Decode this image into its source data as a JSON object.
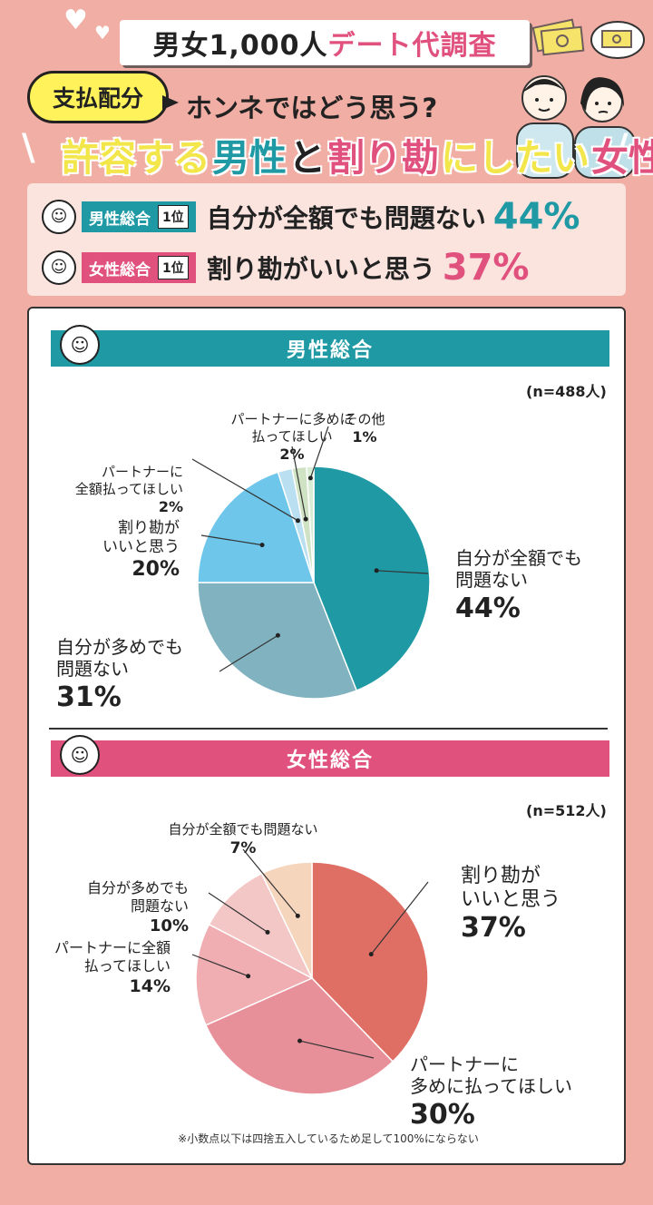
{
  "header": {
    "title_main": "男女1,000人",
    "title_accent": "デート代調査",
    "badge": "支払配分",
    "question": "ホンネではどう思う?",
    "headline": [
      {
        "text": "許容する",
        "color": "#f3e64b"
      },
      {
        "text": "男性",
        "color": "#1f9aa5"
      },
      {
        "text": "と",
        "color": "#222222"
      },
      {
        "text": "割り勘",
        "color": "#e0517e"
      },
      {
        "text": "にしたい",
        "color": "#f3e64b"
      },
      {
        "text": "女性",
        "color": "#e0517e"
      }
    ]
  },
  "summary": {
    "male": {
      "tag": "男性総合",
      "rank": "1位",
      "answer": "自分が全額でも問題ない",
      "pct": "44%",
      "color": "#1f9aa5"
    },
    "female": {
      "tag": "女性総合",
      "rank": "1位",
      "answer": "割り勘がいいと思う",
      "pct": "37%",
      "color": "#e0517e"
    }
  },
  "colors": {
    "male_band": "#1f9aa5",
    "female_band": "#e0517e",
    "background": "#f1aea4"
  },
  "chart_data": [
    {
      "type": "pie",
      "title": "男性総合",
      "n": "(n=488人)",
      "slices": [
        {
          "label": "自分が全額でも問題ない",
          "value": 44,
          "color": "#1f9aa5"
        },
        {
          "label": "自分が多めでも問題ない",
          "value": 31,
          "color": "#80b2bf"
        },
        {
          "label": "割り勘がいいと思う",
          "value": 20,
          "color": "#6ec6ea"
        },
        {
          "label": "パートナーに全額払ってほしい",
          "value": 2,
          "color": "#b9dff0"
        },
        {
          "label": "パートナーに多めに払ってほしい",
          "value": 2,
          "color": "#cfe3c4"
        },
        {
          "label": "その他",
          "value": 1,
          "color": "#d9ecd6"
        }
      ]
    },
    {
      "type": "pie",
      "title": "女性総合",
      "n": "(n=512人)",
      "slices": [
        {
          "label": "割り勘がいいと思う",
          "value": 37,
          "color": "#df6f65"
        },
        {
          "label": "パートナーに多めに払ってほしい",
          "value": 30,
          "color": "#e8909a"
        },
        {
          "label": "パートナーに全額払ってほしい",
          "value": 14,
          "color": "#f0aeb2"
        },
        {
          "label": "自分が多めでも問題ない",
          "value": 10,
          "color": "#f4c7c7"
        },
        {
          "label": "自分が全額でも問題ない",
          "value": 7,
          "color": "#f6d5bd"
        }
      ]
    }
  ],
  "chart_labels": {
    "male": [
      {
        "lines": [
          "自分が全額でも",
          "問題ない"
        ],
        "pct": "44%"
      },
      {
        "lines": [
          "自分が多めでも",
          "問題ない"
        ],
        "pct": "31%"
      },
      {
        "lines": [
          "割り勘が",
          "いいと思う"
        ],
        "pct": "20%"
      },
      {
        "lines": [
          "パートナーに",
          "全額払ってほしい"
        ],
        "pct": "2%"
      },
      {
        "lines": [
          "パートナーに多めに",
          "払ってほしい"
        ],
        "pct": "2%"
      },
      {
        "lines": [
          "その他"
        ],
        "pct": "1%"
      }
    ],
    "female": [
      {
        "lines": [
          "割り勘が",
          "いいと思う"
        ],
        "pct": "37%"
      },
      {
        "lines": [
          "パートナーに",
          "多めに払ってほしい"
        ],
        "pct": "30%"
      },
      {
        "lines": [
          "パートナーに全額",
          "払ってほしい"
        ],
        "pct": "14%"
      },
      {
        "lines": [
          "自分が多めでも",
          "問題ない"
        ],
        "pct": "10%"
      },
      {
        "lines": [
          "自分が全額でも問題ない"
        ],
        "pct": "7%"
      }
    ]
  },
  "footnote": "※小数点以下は四捨五入しているため足して100%にならない"
}
